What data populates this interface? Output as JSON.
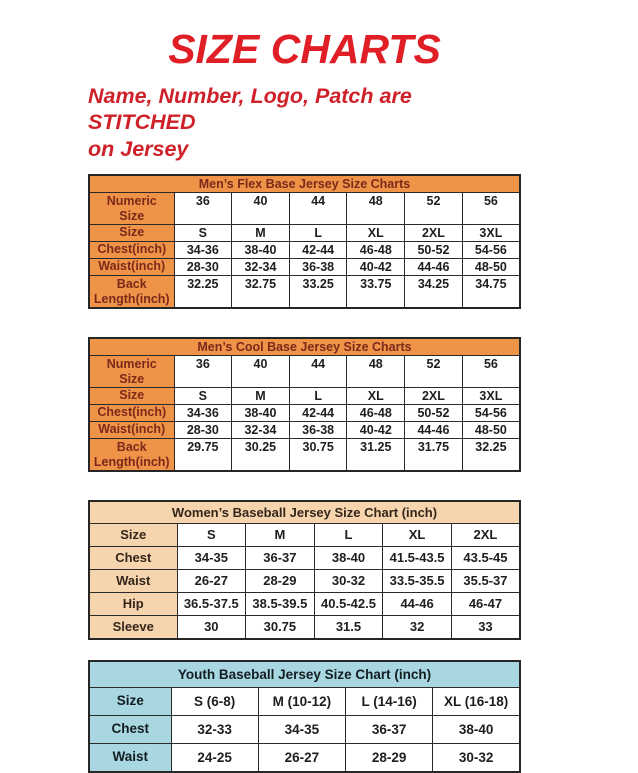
{
  "page": {
    "title": "SIZE CHARTS",
    "subtitle": "Name, Number, Logo, Patch are STITCHED\non Jersey"
  },
  "colors": {
    "title_red": "#E01E25",
    "subtitle_red": "#CE2129",
    "mens_header_orange": "#EF9349",
    "mens_header_text": "#7B2A1A",
    "womens_header_peach": "#F6D5AE",
    "youth_header_blue": "#A8D7E1",
    "cell_text": "#1E1E1E",
    "table_border": "#262626"
  },
  "tables": [
    {
      "id": "mens-flex-base",
      "theme": "t-men",
      "title": "Men’s Flex Base Jersey Size Charts",
      "rows": [
        {
          "label": "Numeric\nSize",
          "tall": true,
          "values": [
            "36",
            "40",
            "44",
            "48",
            "52",
            "56"
          ]
        },
        {
          "label": "Size",
          "values": [
            "S",
            "M",
            "L",
            "XL",
            "2XL",
            "3XL"
          ]
        },
        {
          "label": "Chest(inch)",
          "values": [
            "34-36",
            "38-40",
            "42-44",
            "46-48",
            "50-52",
            "54-56"
          ]
        },
        {
          "label": "Waist(inch)",
          "values": [
            "28-30",
            "32-34",
            "36-38",
            "40-42",
            "44-46",
            "48-50"
          ]
        },
        {
          "label": "Back\nLength(inch)",
          "tall": true,
          "values": [
            "32.25",
            "32.75",
            "33.25",
            "33.75",
            "34.25",
            "34.75"
          ]
        }
      ]
    },
    {
      "id": "mens-cool-base",
      "theme": "t-men",
      "title": "Men’s Cool Base Jersey Size Charts",
      "rows": [
        {
          "label": "Numeric\nSize",
          "tall": true,
          "values": [
            "36",
            "40",
            "44",
            "48",
            "52",
            "56"
          ]
        },
        {
          "label": "Size",
          "values": [
            "S",
            "M",
            "L",
            "XL",
            "2XL",
            "3XL"
          ]
        },
        {
          "label": "Chest(inch)",
          "values": [
            "34-36",
            "38-40",
            "42-44",
            "46-48",
            "50-52",
            "54-56"
          ]
        },
        {
          "label": "Waist(inch)",
          "values": [
            "28-30",
            "32-34",
            "36-38",
            "40-42",
            "44-46",
            "48-50"
          ]
        },
        {
          "label": "Back\nLength(inch)",
          "tall": true,
          "values": [
            "29.75",
            "30.25",
            "30.75",
            "31.25",
            "31.75",
            "32.25"
          ]
        }
      ]
    },
    {
      "id": "womens-baseball",
      "theme": "t-women",
      "title": "Women’s Baseball Jersey Size Chart (inch)",
      "rows": [
        {
          "label": "Size",
          "values": [
            "S",
            "M",
            "L",
            "XL",
            "2XL"
          ]
        },
        {
          "label": "Chest",
          "values": [
            "34-35",
            "36-37",
            "38-40",
            "41.5-43.5",
            "43.5-45"
          ]
        },
        {
          "label": "Waist",
          "values": [
            "26-27",
            "28-29",
            "30-32",
            "33.5-35.5",
            "35.5-37"
          ]
        },
        {
          "label": "Hip",
          "values": [
            "36.5-37.5",
            "38.5-39.5",
            "40.5-42.5",
            "44-46",
            "46-47"
          ]
        },
        {
          "label": "Sleeve",
          "values": [
            "30",
            "30.75",
            "31.5",
            "32",
            "33"
          ]
        }
      ]
    },
    {
      "id": "youth-baseball",
      "theme": "t-youth",
      "title": "Youth Baseball Jersey Size Chart (inch)",
      "rows": [
        {
          "label": "Size",
          "values": [
            "S (6-8)",
            "M (10-12)",
            "L (14-16)",
            "XL (16-18)"
          ]
        },
        {
          "label": "Chest",
          "values": [
            "32-33",
            "34-35",
            "36-37",
            "38-40"
          ]
        },
        {
          "label": "Waist",
          "values": [
            "24-25",
            "26-27",
            "28-29",
            "30-32"
          ]
        }
      ]
    }
  ]
}
